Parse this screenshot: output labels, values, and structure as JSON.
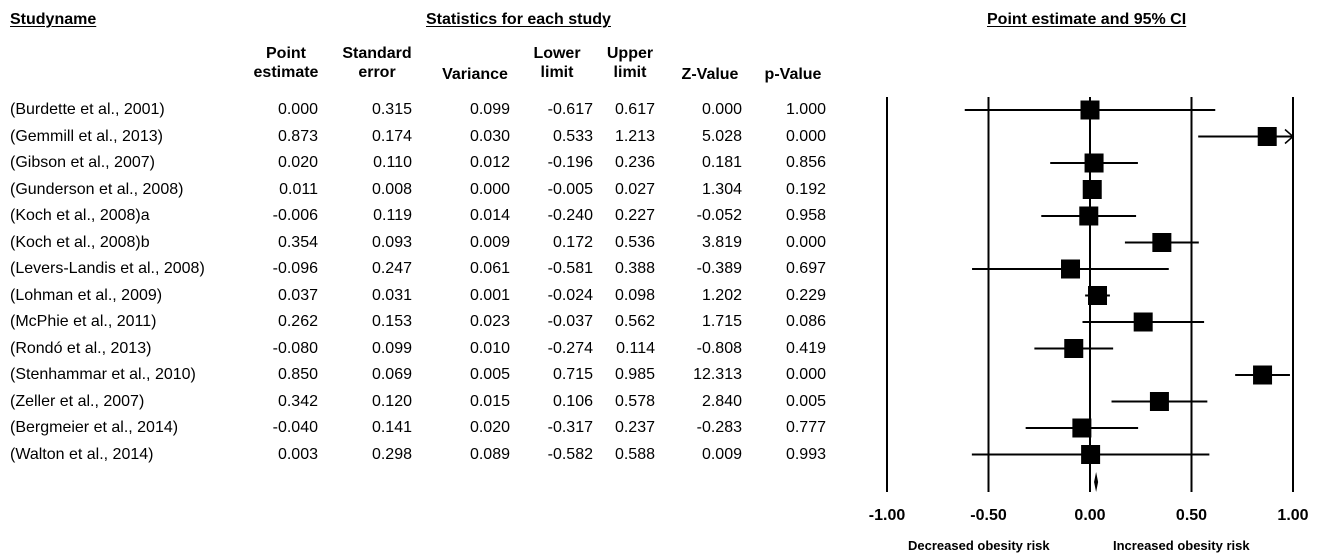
{
  "headers": {
    "study_name": "Studyname",
    "stats_group": "Statistics for each study",
    "plot_title": "Point estimate and 95% CI"
  },
  "columns": [
    [
      "Point",
      "estimate"
    ],
    [
      "Standard",
      "error"
    ],
    [
      "Variance",
      ""
    ],
    [
      "Lower",
      "limit"
    ],
    [
      "Upper",
      "limit"
    ],
    [
      "Z-Value",
      ""
    ],
    [
      "p-Value",
      ""
    ]
  ],
  "rows": [
    {
      "study": "(Burdette et al., 2001)",
      "values": [
        "0.000",
        "0.315",
        "0.099",
        "-0.617",
        "0.617",
        "0.000",
        "1.000"
      ]
    },
    {
      "study": "(Gemmill et al., 2013)",
      "values": [
        "0.873",
        "0.174",
        "0.030",
        "0.533",
        "1.213",
        "5.028",
        "0.000"
      ]
    },
    {
      "study": "(Gibson et al., 2007)",
      "values": [
        "0.020",
        "0.110",
        "0.012",
        "-0.196",
        "0.236",
        "0.181",
        "0.856"
      ]
    },
    {
      "study": "(Gunderson et al., 2008)",
      "values": [
        "0.011",
        "0.008",
        "0.000",
        "-0.005",
        "0.027",
        "1.304",
        "0.192"
      ]
    },
    {
      "study": "(Koch et al., 2008)a",
      "values": [
        "-0.006",
        "0.119",
        "0.014",
        "-0.240",
        "0.227",
        "-0.052",
        "0.958"
      ]
    },
    {
      "study": "(Koch et al., 2008)b",
      "values": [
        "0.354",
        "0.093",
        "0.009",
        "0.172",
        "0.536",
        "3.819",
        "0.000"
      ]
    },
    {
      "study": "(Levers-Landis et al., 2008)",
      "values": [
        "-0.096",
        "0.247",
        "0.061",
        "-0.581",
        "0.388",
        "-0.389",
        "0.697"
      ]
    },
    {
      "study": "(Lohman et al., 2009)",
      "values": [
        "0.037",
        "0.031",
        "0.001",
        "-0.024",
        "0.098",
        "1.202",
        "0.229"
      ]
    },
    {
      "study": "(McPhie et al., 2011)",
      "values": [
        "0.262",
        "0.153",
        "0.023",
        "-0.037",
        "0.562",
        "1.715",
        "0.086"
      ]
    },
    {
      "study": "(Rondó et al., 2013)",
      "values": [
        "-0.080",
        "0.099",
        "0.010",
        "-0.274",
        "0.114",
        "-0.808",
        "0.419"
      ]
    },
    {
      "study": "(Stenhammar et al., 2010)",
      "values": [
        "0.850",
        "0.069",
        "0.005",
        "0.715",
        "0.985",
        "12.313",
        "0.000"
      ]
    },
    {
      "study": "(Zeller et al., 2007)",
      "values": [
        "0.342",
        "0.120",
        "0.015",
        "0.106",
        "0.578",
        "2.840",
        "0.005"
      ]
    },
    {
      "study": "(Bergmeier et al., 2014)",
      "values": [
        "-0.040",
        "0.141",
        "0.020",
        "-0.317",
        "0.237",
        "-0.283",
        "0.777"
      ]
    },
    {
      "study": "(Walton et al., 2014)",
      "values": [
        "0.003",
        "0.298",
        "0.089",
        "-0.582",
        "0.588",
        "0.009",
        "0.993"
      ]
    }
  ],
  "chart_data": {
    "type": "forest",
    "title": "Point estimate and 95% CI",
    "xlim": [
      -1.0,
      1.0
    ],
    "xticks": [
      "-1.00",
      "-0.50",
      "0.00",
      "0.50",
      "1.00"
    ],
    "xtick_values": [
      -1.0,
      -0.5,
      0.0,
      0.5,
      1.0
    ],
    "left_label": "Decreased obesity risk",
    "right_label": "Increased obesity risk",
    "studies": [
      {
        "point": 0.0,
        "lower": -0.617,
        "upper": 0.617
      },
      {
        "point": 0.873,
        "lower": 0.533,
        "upper": 1.213
      },
      {
        "point": 0.02,
        "lower": -0.196,
        "upper": 0.236
      },
      {
        "point": 0.011,
        "lower": -0.005,
        "upper": 0.027
      },
      {
        "point": -0.006,
        "lower": -0.24,
        "upper": 0.227
      },
      {
        "point": 0.354,
        "lower": 0.172,
        "upper": 0.536
      },
      {
        "point": -0.096,
        "lower": -0.581,
        "upper": 0.388
      },
      {
        "point": 0.037,
        "lower": -0.024,
        "upper": 0.098
      },
      {
        "point": 0.262,
        "lower": -0.037,
        "upper": 0.562
      },
      {
        "point": -0.08,
        "lower": -0.274,
        "upper": 0.114
      },
      {
        "point": 0.85,
        "lower": 0.715,
        "upper": 0.985
      },
      {
        "point": 0.342,
        "lower": 0.106,
        "upper": 0.578
      },
      {
        "point": -0.04,
        "lower": -0.317,
        "upper": 0.237
      },
      {
        "point": 0.003,
        "lower": -0.582,
        "upper": 0.588
      }
    ],
    "summary": {
      "point": 0.03,
      "lower": 0.02,
      "upper": 0.04
    }
  }
}
